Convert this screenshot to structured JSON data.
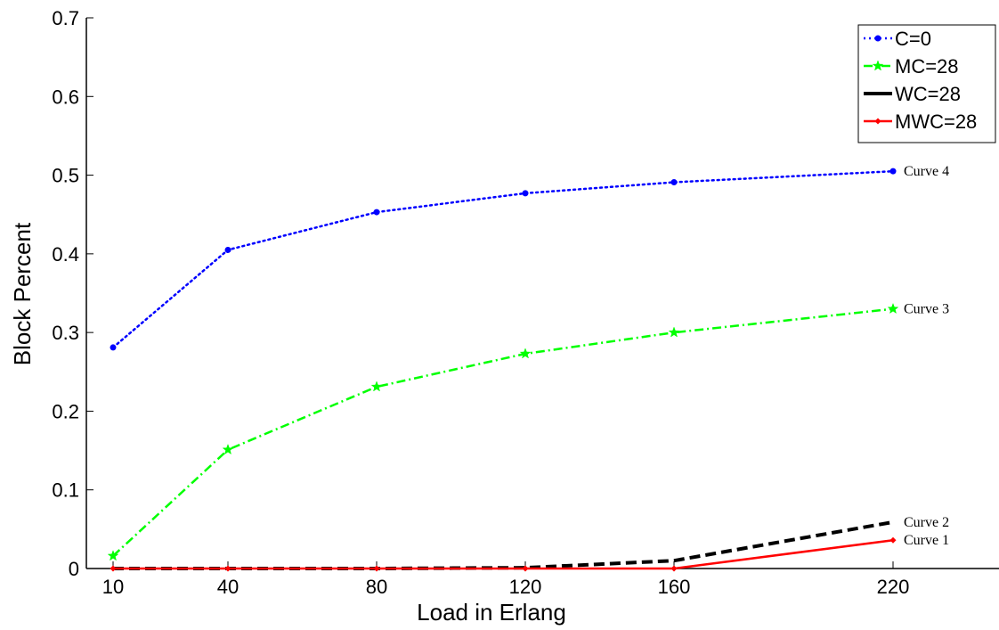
{
  "chart_data": {
    "type": "line",
    "title": "",
    "xlabel": "Load in Erlang",
    "ylabel": "Block Percent",
    "x_ticks": [
      10,
      40,
      80,
      120,
      160,
      220
    ],
    "y_ticks": [
      0,
      0.1,
      0.2,
      0.3,
      0.4,
      0.5,
      0.6,
      0.7
    ],
    "y_tick_labels": [
      "0",
      "0.1",
      "0.2",
      "0.3",
      "0.4",
      "0.5",
      "0.6",
      "0.7"
    ],
    "ylim": [
      0,
      0.7
    ],
    "grid": false,
    "legend_position": "top-right",
    "series": [
      {
        "name": "C=0",
        "color": "#0000ff",
        "line_style": "dotted",
        "marker": "dot",
        "x": [
          10,
          40,
          80,
          120,
          160,
          220
        ],
        "y": [
          0.281,
          0.405,
          0.453,
          0.477,
          0.491,
          0.505
        ],
        "annotation": "Curve 4"
      },
      {
        "name": "MC=28",
        "color": "#00ff00",
        "line_style": "dashdot",
        "marker": "star",
        "x": [
          10,
          40,
          80,
          120,
          160,
          220
        ],
        "y": [
          0.016,
          0.151,
          0.231,
          0.273,
          0.3,
          0.33
        ],
        "annotation": "Curve 3"
      },
      {
        "name": "WC=28",
        "color": "#000000",
        "line_style": "dashed",
        "marker": "none",
        "x": [
          10,
          40,
          80,
          120,
          160,
          220
        ],
        "y": [
          0.0,
          0.0,
          0.0,
          0.001,
          0.01,
          0.059
        ],
        "annotation": "Curve 2"
      },
      {
        "name": "MWC=28",
        "color": "#ff0000",
        "line_style": "solid",
        "marker": "diamond",
        "x": [
          10,
          40,
          80,
          120,
          160,
          220
        ],
        "y": [
          0.0,
          0.0,
          0.0,
          0.0,
          0.0,
          0.036
        ],
        "annotation": "Curve 1"
      }
    ]
  }
}
